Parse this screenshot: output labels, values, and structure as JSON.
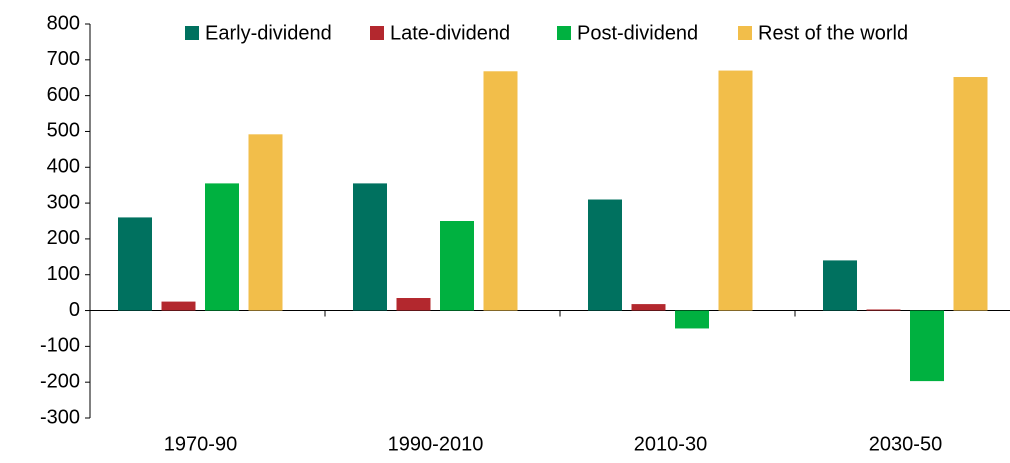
{
  "chart_data": {
    "type": "bar",
    "categories": [
      "1970-90",
      "1990-2010",
      "2010-30",
      "2030-50"
    ],
    "series": [
      {
        "name": "Early-dividend",
        "color": "#00715f",
        "values": [
          260,
          355,
          310,
          140
        ]
      },
      {
        "name": "Late-dividend",
        "color": "#b3282e",
        "values": [
          25,
          35,
          18,
          3
        ]
      },
      {
        "name": "Post-dividend",
        "color": "#00b140",
        "values": [
          355,
          250,
          -50,
          -197
        ]
      },
      {
        "name": "Rest of the world",
        "color": "#f2be4a",
        "values": [
          492,
          668,
          670,
          652
        ]
      }
    ],
    "ylim": [
      -300,
      800
    ],
    "yticks": [
      -300,
      -200,
      -100,
      0,
      100,
      200,
      300,
      400,
      500,
      600,
      700,
      800
    ],
    "grid": false
  }
}
